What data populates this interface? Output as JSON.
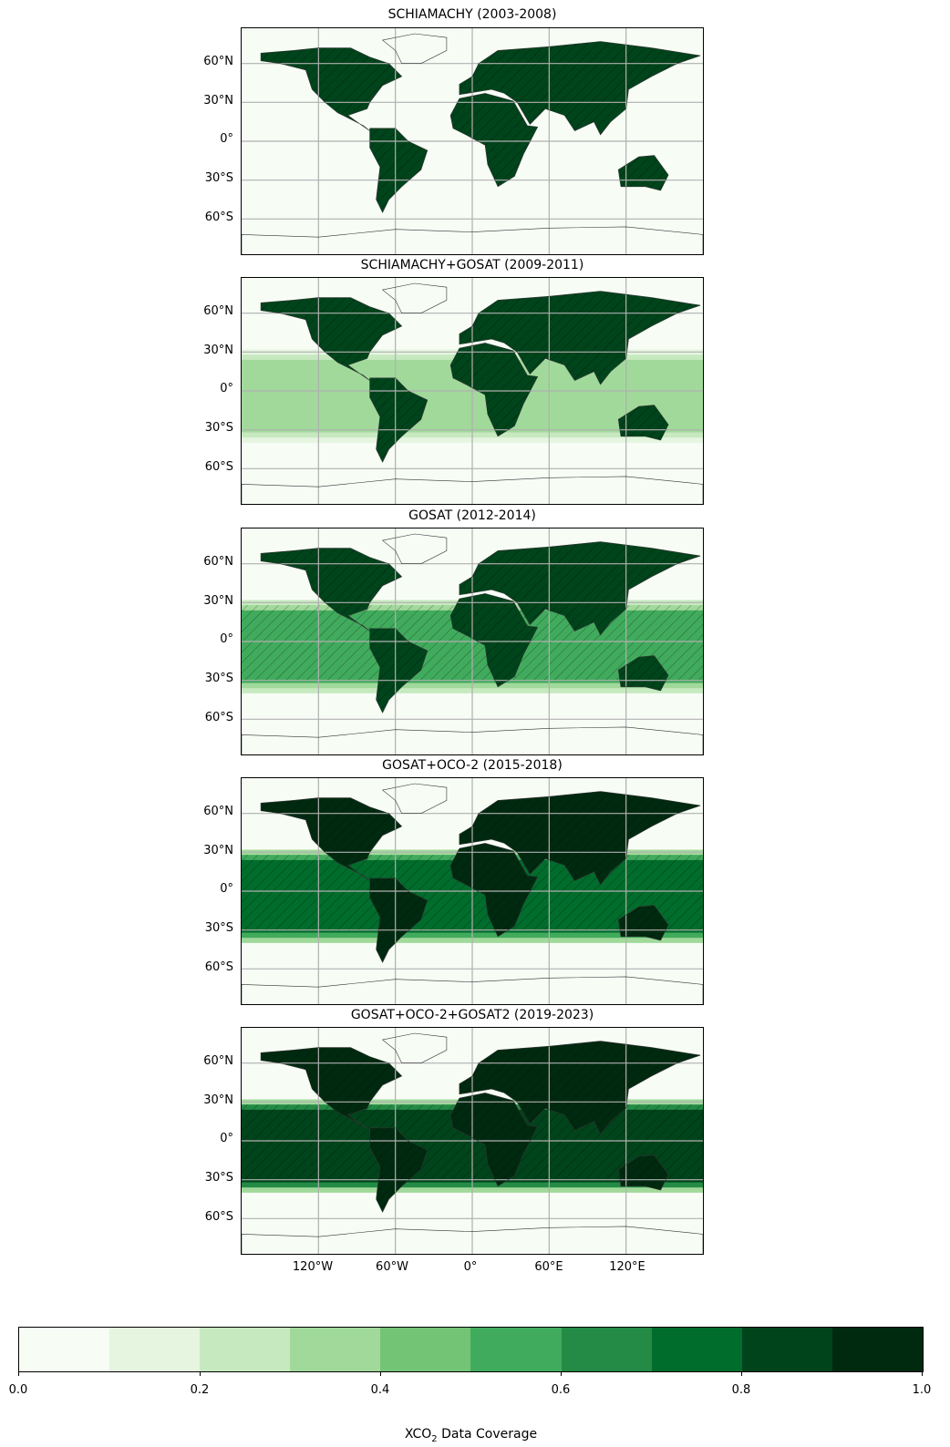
{
  "panels": [
    {
      "title": "SCHIAMACHY (2003-2008)"
    },
    {
      "title": "SCHIAMACHY+GOSAT (2009-2011)"
    },
    {
      "title": "GOSAT (2012-2014)"
    },
    {
      "title": "GOSAT+OCO-2  (2015-2018)"
    },
    {
      "title": "GOSAT+OCO-2+GOSAT2 (2019-2023)"
    }
  ],
  "lat_ticks": [
    "60°N",
    "30°N",
    "0°",
    "30°S",
    "60°S"
  ],
  "lon_ticks": [
    "120°W",
    "60°W",
    "0°",
    "60°E",
    "120°E"
  ],
  "colorbar": {
    "label_main": "XCO",
    "label_sub": "2",
    "label_rest": " Data Coverage",
    "tick_labels": [
      "0.0",
      "0.2",
      "0.4",
      "0.6",
      "0.8",
      "1.0"
    ],
    "min": 0.0,
    "max": 1.0,
    "levels": 10,
    "colors": [
      "#f7fcf5",
      "#e5f5e0",
      "#c7e9c0",
      "#a1d99b",
      "#74c476",
      "#41ab5d",
      "#238b45",
      "#006d2c",
      "#00441b",
      "#002a10"
    ]
  },
  "coverage_levels": [
    {
      "land": 0.85,
      "tropic_band": 0.0
    },
    {
      "land": 0.8,
      "tropic_band": 0.3
    },
    {
      "land": 0.85,
      "tropic_band": 0.5
    },
    {
      "land": 0.9,
      "tropic_band": 0.75
    },
    {
      "land": 0.95,
      "tropic_band": 0.85
    }
  ]
}
